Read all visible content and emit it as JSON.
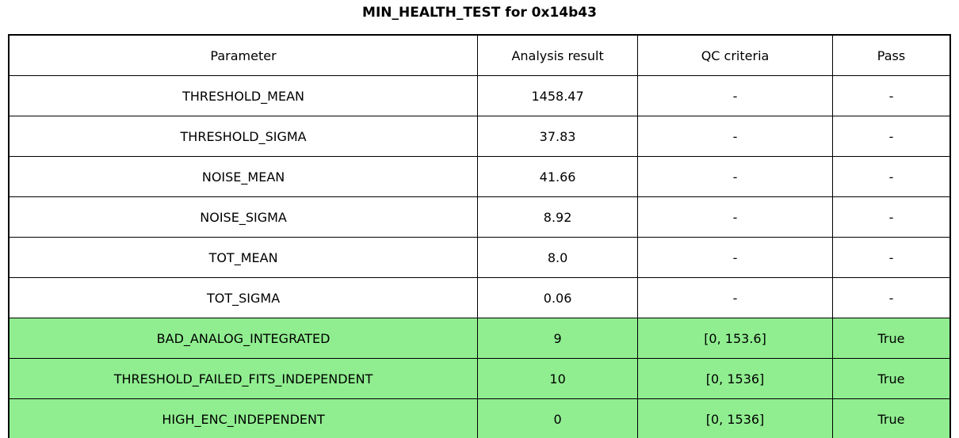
{
  "title": "MIN_HEALTH_TEST for 0x14b43",
  "colors": {
    "pass_row_bg": "#90EE90",
    "default_row_bg": "#FFFFFF",
    "border": "#000000",
    "text": "#000000"
  },
  "chart_data": {
    "type": "table",
    "title": "MIN_HEALTH_TEST for 0x14b43",
    "columns": [
      "Parameter",
      "Analysis result",
      "QC criteria",
      "Pass"
    ],
    "rows": [
      {
        "parameter": "THRESHOLD_MEAN",
        "result": "1458.47",
        "qc": "-",
        "pass": "-",
        "highlight": false
      },
      {
        "parameter": "THRESHOLD_SIGMA",
        "result": "37.83",
        "qc": "-",
        "pass": "-",
        "highlight": false
      },
      {
        "parameter": "NOISE_MEAN",
        "result": "41.66",
        "qc": "-",
        "pass": "-",
        "highlight": false
      },
      {
        "parameter": "NOISE_SIGMA",
        "result": "8.92",
        "qc": "-",
        "pass": "-",
        "highlight": false
      },
      {
        "parameter": "TOT_MEAN",
        "result": "8.0",
        "qc": "-",
        "pass": "-",
        "highlight": false
      },
      {
        "parameter": "TOT_SIGMA",
        "result": "0.06",
        "qc": "-",
        "pass": "-",
        "highlight": false
      },
      {
        "parameter": "BAD_ANALOG_INTEGRATED",
        "result": "9",
        "qc": "[0, 153.6]",
        "pass": "True",
        "highlight": true
      },
      {
        "parameter": "THRESHOLD_FAILED_FITS_INDEPENDENT",
        "result": "10",
        "qc": "[0, 1536]",
        "pass": "True",
        "highlight": true
      },
      {
        "parameter": "HIGH_ENC_INDEPENDENT",
        "result": "0",
        "qc": "[0, 1536]",
        "pass": "True",
        "highlight": true
      }
    ]
  }
}
